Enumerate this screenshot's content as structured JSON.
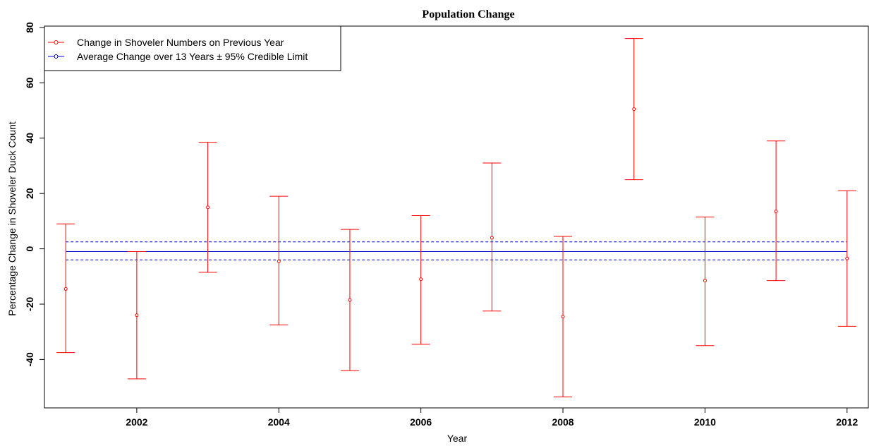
{
  "chart_data": {
    "type": "errorbar",
    "title": "Population Change",
    "xlabel": "Year",
    "ylabel": "Percentage Change in Shoveler Duck Count",
    "xlim": [
      2000.7,
      2012.3
    ],
    "ylim": [
      -57.5,
      80.5
    ],
    "x_ticks": [
      2002,
      2004,
      2006,
      2008,
      2010,
      2012
    ],
    "x_tick_labels": [
      "2002",
      "2004",
      "2006",
      "2008",
      "2010",
      "2012"
    ],
    "y_ticks": [
      -40,
      -20,
      0,
      20,
      40,
      60,
      80
    ],
    "y_tick_labels": [
      "-40",
      "-20",
      "0",
      "20",
      "40",
      "60",
      "80"
    ],
    "grid": false,
    "legend_position": "top-left",
    "legend": [
      {
        "label": "Change in Shoveler Numbers on Previous Year",
        "color": "#ff0000"
      },
      {
        "label": "Average Change over 13 Years ± 95% Credible Limit",
        "color": "#0000cc"
      }
    ],
    "series": [
      {
        "name": "Change in Shoveler Numbers on Previous Year",
        "color": "#ff0000",
        "x": [
          2001,
          2002,
          2003,
          2004,
          2005,
          2006,
          2007,
          2008,
          2009,
          2010,
          2011,
          2012
        ],
        "y": [
          -14.5,
          -24,
          15,
          -4.5,
          -18.5,
          -11,
          4,
          -24.5,
          50.5,
          -11.5,
          13.5,
          -3.5
        ],
        "lower": [
          -37.5,
          -47,
          -8.5,
          -27.5,
          -44,
          -34.5,
          -22.5,
          -53.5,
          25,
          -35,
          -11.5,
          -28
        ],
        "upper": [
          9,
          -1,
          38.5,
          19,
          7,
          12,
          31,
          4.5,
          76,
          11.5,
          39,
          21
        ]
      }
    ],
    "average": {
      "name": "Average Change over 13 Years ± 95% Credible Limit",
      "color": "#0000cc",
      "x_range": [
        2001,
        2012
      ],
      "mean": -1,
      "lower": -4,
      "upper": 2.5
    }
  }
}
